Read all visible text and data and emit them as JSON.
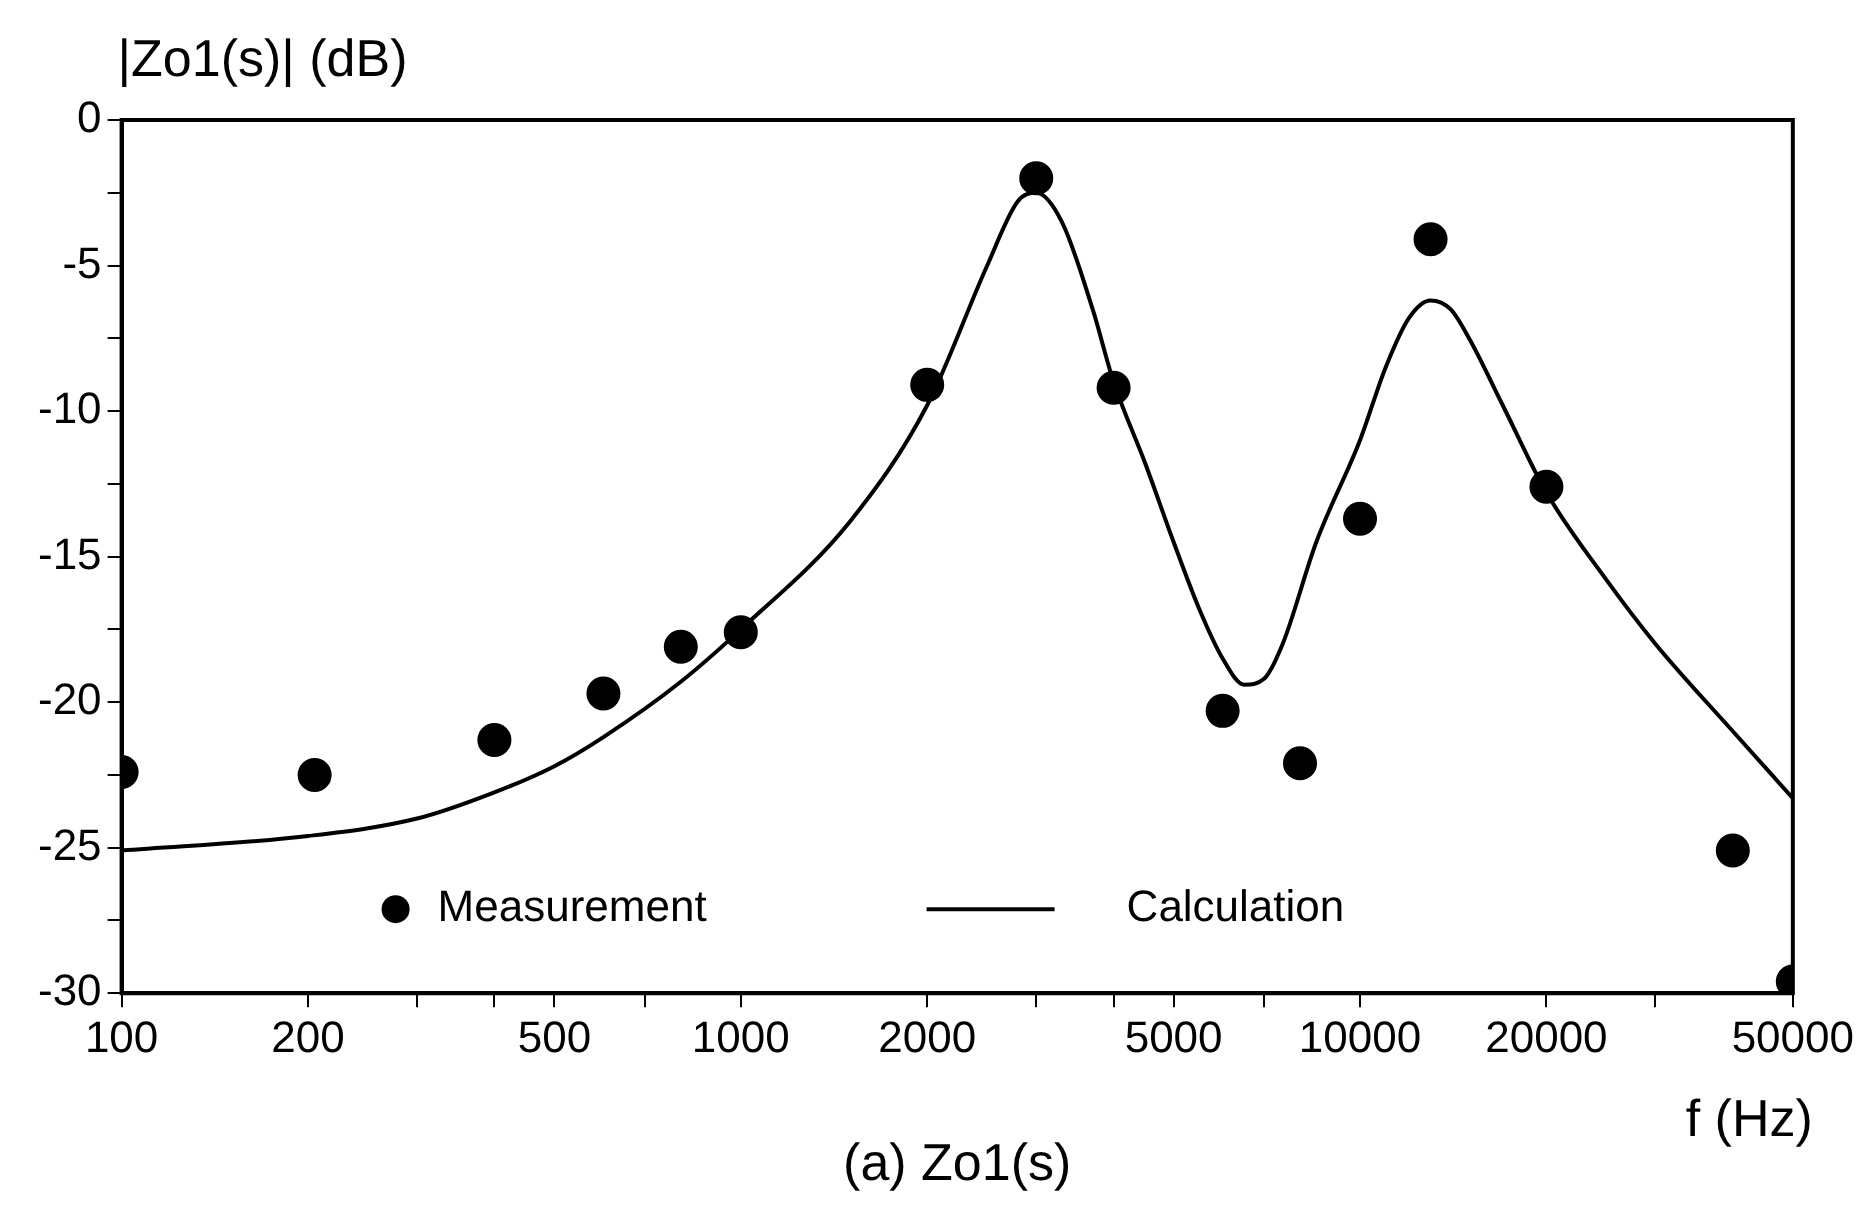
{
  "chart_data": {
    "type": "scatter",
    "xlabel": "f (Hz)",
    "ylabel": "|Zo1(s)| (dB)",
    "annotations": [
      "(a) Zo1(s)"
    ],
    "log": "x",
    "xlim": [
      100,
      50000
    ],
    "ylim": [
      -30,
      0
    ],
    "xticks": [
      100,
      200,
      {
        "value": 300,
        "label": null
      },
      {
        "value": 400,
        "label": null
      },
      500,
      {
        "value": 700,
        "label": null
      },
      1000,
      2000,
      {
        "value": 3000,
        "label": null
      },
      {
        "value": 4000,
        "label": null
      },
      5000,
      {
        "value": 7000,
        "label": null
      },
      10000,
      20000,
      {
        "value": 30000,
        "label": null
      },
      50000
    ],
    "yticks": [
      -30,
      {
        "value": -27.5,
        "label": null
      },
      -25,
      {
        "value": -22.5,
        "label": null
      },
      -20,
      {
        "value": -17.5,
        "label": null
      },
      -15,
      {
        "value": -12.5,
        "label": null
      },
      -10,
      {
        "value": -7.5,
        "label": null
      },
      -5,
      {
        "value": -2.5,
        "label": null
      },
      0
    ],
    "grid": false,
    "legend": "bottom",
    "series": [
      {
        "name": "Measurement",
        "marker": "circle",
        "color": "#000000",
        "x": [
          100,
          205,
          400,
          600,
          800,
          1000,
          2000,
          3000,
          4000,
          6000,
          8000,
          10000,
          13000,
          20000,
          40000,
          50000
        ],
        "values": [
          -22.4,
          -22.5,
          -21.3,
          -19.7,
          -18.1,
          -17.6,
          -9.1,
          -2.0,
          -9.2,
          -20.3,
          -22.1,
          -13.7,
          -4.1,
          -12.6,
          -25.1,
          -29.6
        ]
      },
      {
        "name": "Calculation",
        "type": "line",
        "marker": "none",
        "line_style": "solid",
        "color": "#000000",
        "x": [
          100,
          200,
          300,
          400,
          500,
          600,
          800,
          1000,
          1500,
          2000,
          2500,
          2800,
          3000,
          3300,
          3700,
          4000,
          4500,
          5000,
          5500,
          6000,
          6500,
          7000,
          7500,
          8500,
          10000,
          11000,
          12000,
          13000,
          14000,
          15000,
          17000,
          20000,
          25000,
          30000,
          40000,
          50000
        ],
        "values": [
          -25.1,
          -24.6,
          -24.0,
          -23.1,
          -22.2,
          -21.2,
          -19.3,
          -17.5,
          -13.8,
          -9.8,
          -5.0,
          -2.8,
          -2.5,
          -3.5,
          -6.5,
          -9.0,
          -11.8,
          -14.5,
          -16.8,
          -18.5,
          -19.4,
          -19.2,
          -18.0,
          -14.5,
          -11.0,
          -8.5,
          -6.8,
          -6.2,
          -6.5,
          -7.5,
          -9.8,
          -12.8,
          -15.8,
          -18.0,
          -21.0,
          -23.3
        ]
      }
    ]
  }
}
